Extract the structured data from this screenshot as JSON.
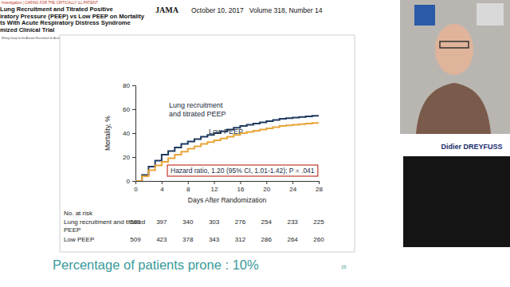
{
  "chart_data": {
    "type": "line",
    "line_style": "step",
    "x_label": "Days After Randomization",
    "y_label": "Mortality, %",
    "xlim": [
      0,
      28
    ],
    "xticks": [
      0,
      4,
      8,
      12,
      16,
      20,
      24,
      28
    ],
    "ylim": [
      0,
      80
    ],
    "yticks": [
      0,
      20,
      40,
      60,
      80
    ],
    "grid": false,
    "annotation": "Hazard ratio, 1.20 (95% CI, 1.01-1.42); P = .041",
    "x": [
      0,
      1,
      2,
      3,
      4,
      5,
      6,
      7,
      8,
      9,
      10,
      11,
      12,
      13,
      14,
      15,
      16,
      17,
      18,
      19,
      20,
      21,
      22,
      23,
      24,
      25,
      26,
      27,
      28
    ],
    "series": [
      {
        "name": "Lung recruitment and titrated PEEP",
        "color": "#1f3a5f",
        "values": [
          0,
          5,
          12,
          17,
          22,
          25,
          28,
          31,
          33,
          35,
          37,
          38.5,
          40,
          41.5,
          43,
          44.5,
          46,
          47,
          48,
          49,
          50,
          51,
          52,
          52.5,
          53,
          53.5,
          54,
          54.5,
          55
        ]
      },
      {
        "name": "Low PEEP",
        "color": "#e8a53a",
        "values": [
          0,
          4,
          9,
          13,
          16,
          19,
          22,
          24.5,
          27,
          29,
          31,
          32.5,
          34,
          35.5,
          37,
          38.5,
          40,
          41,
          42,
          43,
          44,
          45,
          46,
          46.5,
          47,
          47.5,
          48,
          48.5,
          49
        ]
      }
    ],
    "risk_table": {
      "title": "No. at risk",
      "rows": [
        {
          "label": "Lung recruitment and titrated PEEP",
          "values": [
            501,
            397,
            340,
            303,
            276,
            254,
            233,
            225
          ]
        },
        {
          "label": "Low PEEP",
          "values": [
            509,
            423,
            378,
            343,
            312,
            286,
            264,
            260
          ]
        }
      ]
    }
  },
  "slide": {
    "section": "Investigation | CARING FOR THE CRITICALLY ILL PATIENT",
    "title_lines": [
      "Lung Recruitment and Titrated Positive",
      "iratory Pressure (PEEP) vs Low PEEP on Mortality",
      "ts With Acute Respiratory Distress Syndrome",
      "mized Clinical Trial"
    ],
    "authors": "Writing Group for the Alveolar Recruitment for Acute Respiratory Distress Syndrome Trial (ART) Investigators",
    "journal": "JAMA",
    "citation": "October 10, 2017   Volume 318, Number 14",
    "note": "Percentage of patients prone : 10%",
    "page": 25,
    "speaker": "Didier DREYFUSS"
  }
}
